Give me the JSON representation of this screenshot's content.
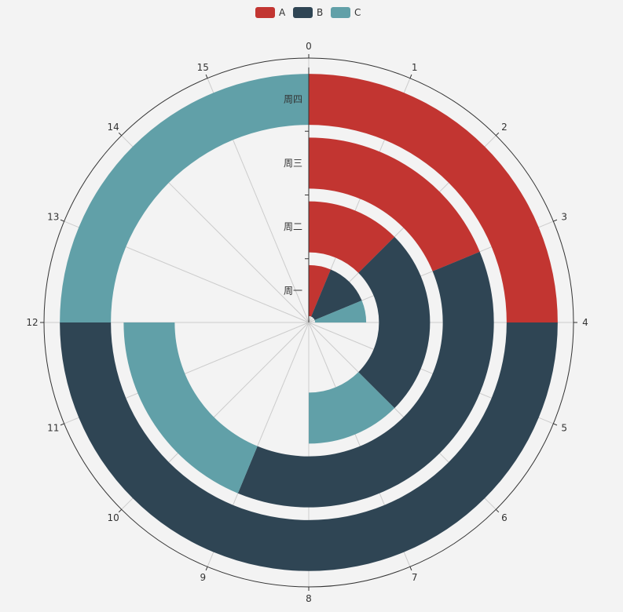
{
  "chart_data": {
    "type": "polar-bar-stacked",
    "angle_axis": {
      "min": 0,
      "max": 16,
      "ticks": [
        0,
        1,
        2,
        3,
        4,
        5,
        6,
        7,
        8,
        9,
        10,
        11,
        12,
        13,
        14,
        15
      ]
    },
    "radius_axis": {
      "categories": [
        "周一",
        "周二",
        "周三",
        "周四"
      ]
    },
    "series": [
      {
        "name": "A",
        "color": "#c23531",
        "values": [
          1,
          2,
          3,
          4
        ]
      },
      {
        "name": "B",
        "color": "#2f4554",
        "values": [
          2,
          4,
          6,
          8
        ]
      },
      {
        "name": "C",
        "color": "#61a0a8",
        "values": [
          1,
          2,
          3,
          4
        ]
      }
    ],
    "legend": {
      "position": "top-center",
      "items": [
        "A",
        "B",
        "C"
      ]
    },
    "background": "#f3f3f3",
    "grid": true
  }
}
